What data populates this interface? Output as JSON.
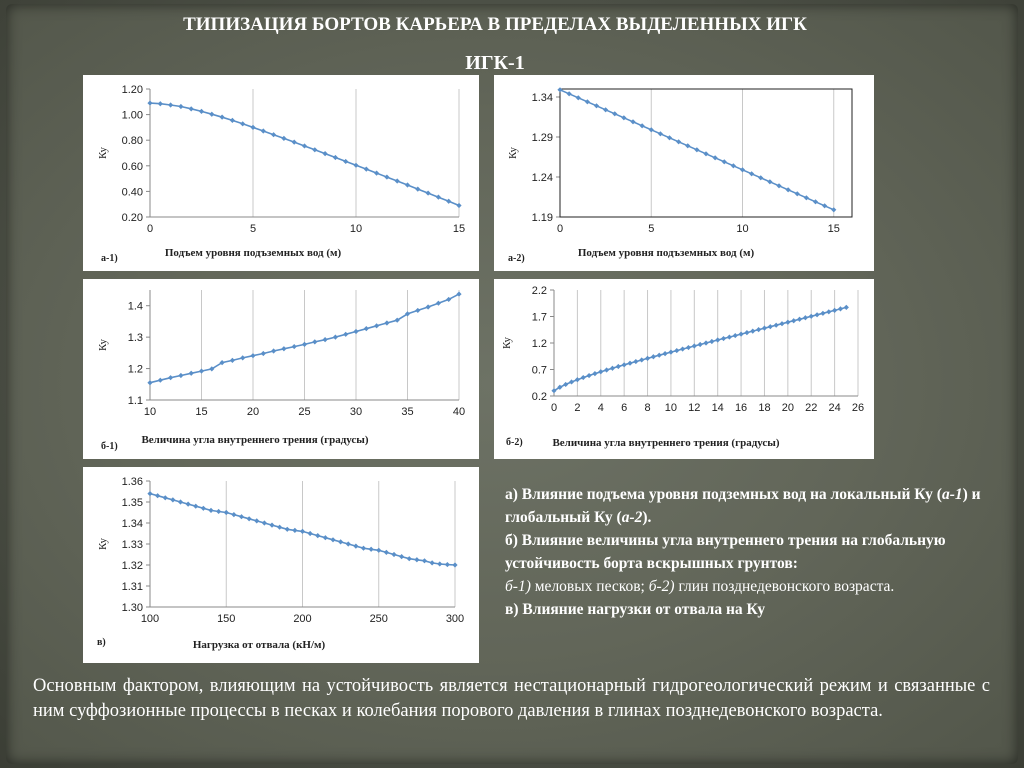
{
  "slide": {
    "title": "ТИПИЗАЦИЯ БОРТОВ КАРЬЕРА В ПРЕДЕЛАХ ВЫДЕЛЕННЫХ ИГК",
    "subtitle": "ИГК-1"
  },
  "chart_data": [
    {
      "id": "a1",
      "type": "line",
      "panel_label": "а-1)",
      "xlabel": "Подъем уровня подъземных вод (м)",
      "ylabel": "Ку",
      "xlim": [
        0,
        15
      ],
      "ylim": [
        0.2,
        1.2
      ],
      "x_ticks": [
        "0",
        "5",
        "10",
        "15"
      ],
      "y_ticks": [
        "0.20",
        "0.40",
        "0.60",
        "0.80",
        "1.00",
        "1.20"
      ],
      "grid": "vertical",
      "box": false,
      "color": "#5a8fc8",
      "x": [
        0,
        0.5,
        1,
        1.5,
        2,
        2.5,
        3,
        3.5,
        4,
        4.5,
        5,
        5.5,
        6,
        6.5,
        7,
        7.5,
        8,
        8.5,
        9,
        9.5,
        10,
        10.5,
        11,
        11.5,
        12,
        12.5,
        13,
        13.5,
        14,
        14.5,
        15
      ],
      "y": [
        1.09,
        1.085,
        1.075,
        1.063,
        1.045,
        1.025,
        1.003,
        0.98,
        0.955,
        0.928,
        0.9,
        0.872,
        0.843,
        0.814,
        0.785,
        0.755,
        0.725,
        0.695,
        0.665,
        0.634,
        0.604,
        0.574,
        0.543,
        0.512,
        0.481,
        0.45,
        0.418,
        0.387,
        0.355,
        0.323,
        0.29
      ]
    },
    {
      "id": "a2",
      "type": "line",
      "panel_label": "а-2)",
      "xlabel": "Подъем уровня подъземных вод (м)",
      "ylabel": "Ку",
      "xlim": [
        0,
        16
      ],
      "ylim": [
        1.19,
        1.35
      ],
      "x_ticks": [
        "0",
        "5",
        "10",
        "15"
      ],
      "y_ticks": [
        "1.19",
        "1.24",
        "1.29",
        "1.34"
      ],
      "grid": "vertical",
      "box": true,
      "color": "#5a8fc8",
      "x": [
        0,
        0.5,
        1,
        1.5,
        2,
        2.5,
        3,
        3.5,
        4,
        4.5,
        5,
        5.5,
        6,
        6.5,
        7,
        7.5,
        8,
        8.5,
        9,
        9.5,
        10,
        10.5,
        11,
        11.5,
        12,
        12.5,
        13,
        13.5,
        14,
        14.5,
        15
      ],
      "y": [
        1.349,
        1.344,
        1.339,
        1.334,
        1.329,
        1.324,
        1.319,
        1.314,
        1.309,
        1.304,
        1.299,
        1.294,
        1.289,
        1.284,
        1.279,
        1.274,
        1.269,
        1.264,
        1.259,
        1.254,
        1.249,
        1.244,
        1.239,
        1.234,
        1.229,
        1.224,
        1.219,
        1.214,
        1.209,
        1.204,
        1.199
      ]
    },
    {
      "id": "b1",
      "type": "line",
      "panel_label": "б-1)",
      "xlabel": "Величина угла внутреннего трения (градусы)",
      "ylabel": "Ку",
      "xlim": [
        10,
        40
      ],
      "ylim": [
        1.1,
        1.45
      ],
      "x_ticks": [
        "10",
        "15",
        "20",
        "25",
        "30",
        "35",
        "40"
      ],
      "y_ticks": [
        "1.1",
        "1.2",
        "1.3",
        "1.4"
      ],
      "grid": "vertical",
      "box": false,
      "color": "#5a8fc8",
      "x": [
        10,
        11,
        12,
        13,
        14,
        15,
        16,
        17,
        18,
        19,
        20,
        21,
        22,
        23,
        24,
        25,
        26,
        27,
        28,
        29,
        30,
        31,
        32,
        33,
        34,
        35,
        36,
        37,
        38,
        39,
        40
      ],
      "y": [
        1.155,
        1.163,
        1.171,
        1.178,
        1.185,
        1.192,
        1.199,
        1.219,
        1.226,
        1.234,
        1.241,
        1.248,
        1.256,
        1.263,
        1.27,
        1.277,
        1.285,
        1.292,
        1.3,
        1.309,
        1.318,
        1.327,
        1.336,
        1.345,
        1.354,
        1.374,
        1.385,
        1.396,
        1.408,
        1.42,
        1.437
      ]
    },
    {
      "id": "b2",
      "type": "line",
      "panel_label": "б-2)",
      "xlabel": "Величина угла внутреннего трения (градусы)",
      "ylabel": "Ку",
      "xlim": [
        0,
        26
      ],
      "ylim": [
        0.2,
        2.2
      ],
      "x_ticks": [
        "0",
        "2",
        "4",
        "6",
        "8",
        "10",
        "12",
        "14",
        "16",
        "18",
        "20",
        "22",
        "24",
        "26"
      ],
      "y_ticks": [
        "0.2",
        "0.7",
        "1.2",
        "1.7",
        "2.2"
      ],
      "grid": "vertical",
      "box": false,
      "color": "#5a8fc8",
      "x": [
        0,
        0.5,
        1,
        1.5,
        2,
        2.5,
        3,
        3.5,
        4,
        4.5,
        5,
        5.5,
        6,
        6.5,
        7,
        7.5,
        8,
        8.5,
        9,
        9.5,
        10,
        10.5,
        11,
        11.5,
        12,
        12.5,
        13,
        13.5,
        14,
        14.5,
        15,
        15.5,
        16,
        16.5,
        17,
        17.5,
        18,
        18.5,
        19,
        19.5,
        20,
        20.5,
        21,
        21.5,
        22,
        22.5,
        23,
        23.5,
        24,
        24.5,
        25
      ],
      "y": [
        0.3,
        0.365,
        0.418,
        0.465,
        0.508,
        0.548,
        0.586,
        0.622,
        0.657,
        0.691,
        0.724,
        0.756,
        0.788,
        0.819,
        0.85,
        0.88,
        0.91,
        0.94,
        0.97,
        0.999,
        1.028,
        1.057,
        1.086,
        1.114,
        1.143,
        1.171,
        1.2,
        1.228,
        1.256,
        1.284,
        1.312,
        1.34,
        1.368,
        1.396,
        1.424,
        1.452,
        1.48,
        1.508,
        1.536,
        1.564,
        1.592,
        1.62,
        1.648,
        1.676,
        1.704,
        1.732,
        1.76,
        1.788,
        1.816,
        1.844,
        1.872
      ]
    },
    {
      "id": "v",
      "type": "line",
      "panel_label": "в)",
      "xlabel": "Нагрузка от отвала (кН/м)",
      "ylabel": "Ку",
      "xlim": [
        100,
        300
      ],
      "ylim": [
        1.3,
        1.36
      ],
      "x_ticks": [
        "100",
        "150",
        "200",
        "250",
        "300"
      ],
      "y_ticks": [
        "1.30",
        "1.31",
        "1.32",
        "1.33",
        "1.34",
        "1.35",
        "1.36"
      ],
      "grid": "vertical",
      "box": false,
      "color": "#5a8fc8",
      "x": [
        100,
        105,
        110,
        115,
        120,
        125,
        130,
        135,
        140,
        145,
        150,
        155,
        160,
        165,
        170,
        175,
        180,
        185,
        190,
        195,
        200,
        205,
        210,
        215,
        220,
        225,
        230,
        235,
        240,
        245,
        250,
        255,
        260,
        265,
        270,
        275,
        280,
        285,
        290,
        295,
        300
      ],
      "y": [
        1.354,
        1.353,
        1.352,
        1.351,
        1.35,
        1.349,
        1.348,
        1.347,
        1.346,
        1.3455,
        1.345,
        1.344,
        1.343,
        1.342,
        1.341,
        1.34,
        1.339,
        1.338,
        1.337,
        1.3365,
        1.336,
        1.335,
        1.334,
        1.333,
        1.332,
        1.331,
        1.33,
        1.329,
        1.328,
        1.3275,
        1.327,
        1.326,
        1.325,
        1.324,
        1.323,
        1.3225,
        1.322,
        1.321,
        1.3205,
        1.3202,
        1.32
      ]
    }
  ],
  "description": {
    "line_a": "а) Влияние подъема уровня подземных вод на локальный Ку (",
    "a1": "а-1",
    "line_a_mid": ") и глобальный Ку (",
    "a2": "а-2",
    "line_a_end": ").",
    "line_b": "б) Влияние величины угла внутреннего трения на глобальную устойчивость борта вскрышных грунтов:",
    "b1": "б-1)",
    "b1_text": " меловых песков; ",
    "b2": "б-2)",
    "b2_text": " глин позднедевонского возраста.",
    "line_v": "в) Влияние нагрузки от отвала на Ку"
  },
  "bottom_text": "Основным фактором, влияющим на устойчивость является нестационарный гидрогеологический режим и связанные с ним суффозионные процессы в песках и колебания порового давления в глинах позднедевонского возраста."
}
